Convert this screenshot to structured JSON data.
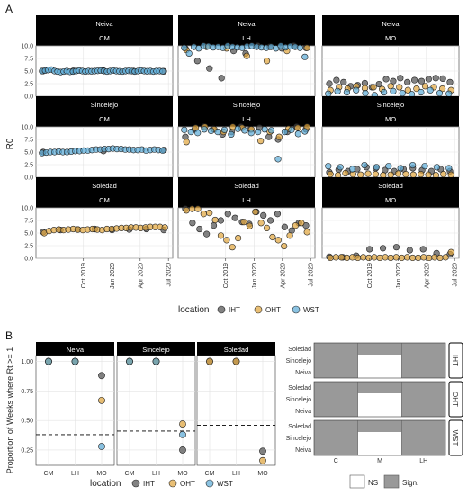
{
  "colors": {
    "IHT": "#4d4d4d",
    "OHT": "#e0a43a",
    "WST": "#5aa9d6",
    "sign": "#999999",
    "ns": "#ffffff"
  },
  "chart_data": [
    {
      "type": "scatter",
      "panel_label": "A",
      "ylabel": "R0",
      "ylim": [
        0,
        10
      ],
      "yticks": [
        "0.0",
        "2.5",
        "5.0",
        "7.5",
        "10.0"
      ],
      "xlim": [
        "2019-05-01",
        "2020-07-15"
      ],
      "xticks": [
        "Oct 2019",
        "Jan 2020",
        "Apr 2020",
        "Jul 2020"
      ],
      "rows": [
        "Neiva",
        "Sincelejo",
        "Soledad"
      ],
      "cols": [
        "CM",
        "LH",
        "MO"
      ],
      "legend": {
        "title": "location",
        "entries": [
          "IHT",
          "OHT",
          "WST"
        ]
      },
      "series_note": "weekly R0 by city (rows), model (cols) and location (colour); values are estimates read from the plot",
      "panels": {
        "Neiva|CM": {
          "IHT": [
            5.0,
            5.05,
            5.1,
            5.0,
            4.95
          ],
          "WST": [
            5.0,
            5.1,
            5.2,
            5.3,
            5.0,
            4.9,
            4.8,
            4.9,
            5.0,
            4.85,
            4.9,
            5.0,
            5.1,
            5.0,
            4.9,
            5.0,
            4.95,
            5.0,
            5.05,
            5.1,
            5.0,
            4.9,
            5.0,
            5.1,
            5.0,
            4.95,
            4.9,
            5.0,
            5.05,
            5.0,
            4.9,
            5.0,
            5.1,
            5.0,
            4.95,
            5.0,
            4.9,
            5.0,
            5.0,
            4.95
          ]
        },
        "Neiva|LH": {
          "IHT": [
            9.5,
            7.0,
            5.5,
            3.6,
            9.0,
            8.5,
            10,
            9.8,
            9.5,
            10,
            9.6
          ],
          "OHT": [
            9.2,
            9.8,
            9.5,
            8.0,
            7.0,
            9.0,
            9.6
          ],
          "WST": [
            9.6,
            8.5,
            9.8,
            9.5,
            10,
            9.9,
            9.7,
            9.8,
            9.6,
            10,
            9.8,
            9.7,
            9.6,
            9.9,
            10,
            9.8,
            9.7,
            9.6,
            9.8,
            9.5,
            10,
            9.7,
            9.9,
            9.8,
            9.6,
            7.8
          ]
        },
        "Neiva|MO": {
          "IHT": [
            2.5,
            3.2,
            2.8,
            2.0,
            2.2,
            2.6,
            1.8,
            2.4,
            3.4,
            3.0,
            3.6,
            2.8,
            3.2,
            3.0,
            3.4,
            3.6,
            3.5,
            2.8
          ],
          "OHT": [
            1.2,
            1.8,
            1.5,
            2.0,
            1.6,
            1.8,
            1.4,
            2.0,
            1.8,
            1.2,
            1.5,
            2.0,
            1.8,
            1.5,
            1.2
          ],
          "WST": [
            0.5,
            1.0,
            0.8,
            1.2,
            0.6,
            0.2,
            0.8,
            1.0,
            0.6,
            0.4,
            0.8,
            1.2,
            0.6,
            0.5
          ]
        },
        "Sincelejo|CM": {
          "IHT": [
            5.0,
            5.2,
            5.4
          ],
          "WST": [
            4.8,
            4.9,
            5.0,
            5.0,
            5.1,
            5.0,
            5.0,
            5.1,
            5.2,
            5.2,
            5.3,
            5.3,
            5.4,
            5.5,
            5.5,
            5.6,
            5.6,
            5.7,
            5.6,
            5.6,
            5.5,
            5.5,
            5.4,
            5.4,
            5.5,
            5.3,
            5.4,
            5.5,
            5.4,
            5.3
          ]
        },
        "Sincelejo|LH": {
          "IHT": [
            8.0,
            9.5,
            10,
            9.6,
            8.5,
            9.0,
            10,
            9.5,
            9.8,
            8.0,
            7.5,
            9.0,
            10,
            9.5
          ],
          "OHT": [
            7.0,
            9.8,
            10,
            9.5,
            9.0,
            10,
            9.8,
            9.5,
            7.2,
            9.0,
            8.0,
            9.6,
            9.8,
            10
          ],
          "WST": [
            9.4,
            9.0,
            8.8,
            9.5,
            9.2,
            9.0,
            9.4,
            8.5,
            9.6,
            9.3,
            8.8,
            9.0,
            9.5,
            9.3,
            3.6,
            9.0,
            9.4,
            8.6,
            9.1
          ]
        },
        "Sincelejo|MO": {
          "IHT": [
            1.0,
            1.5,
            1.2,
            1.6,
            2.0,
            1.8,
            1.4,
            1.2,
            1.6,
            1.8,
            1.4,
            1.2,
            1.6,
            1.2
          ],
          "OHT": [
            0.6,
            0.4,
            0.8,
            0.6,
            0.5,
            0.7,
            0.6,
            0.4,
            0.5,
            0.7,
            0.6,
            0.5,
            0.6,
            0.5,
            0.4,
            0.6,
            0.5
          ],
          "WST": [
            2.2,
            2.0,
            1.6,
            2.4,
            2.0,
            2.2,
            1.8,
            2.4,
            2.2,
            2.0,
            1.8
          ]
        },
        "Soledad|CM": {
          "IHT": [
            5.2,
            5.6,
            5.7,
            5.8,
            5.6,
            5.7,
            5.8,
            5.6
          ],
          "OHT": [
            5.0,
            5.4,
            5.6,
            5.7,
            5.6,
            5.7,
            5.8,
            5.7,
            5.6,
            5.7,
            5.8,
            5.7,
            5.6,
            5.8,
            5.8,
            5.9,
            6.0,
            6.0,
            6.1,
            6.1,
            6.0,
            6.1,
            6.2,
            6.2,
            6.2,
            6.1
          ]
        },
        "Soledad|LH": {
          "IHT": [
            9.8,
            7.0,
            5.8,
            4.8,
            6.5,
            7.5,
            8.8,
            8.0,
            7.2,
            6.8,
            9.2,
            8.5,
            7.5,
            8.8,
            6.2,
            5.5,
            7.0,
            6.5
          ],
          "OHT": [
            9.5,
            9.8,
            9.8,
            8.8,
            9.0,
            7.6,
            4.5,
            3.6,
            2.2,
            4.0,
            7.2,
            6.4,
            9.2,
            7.0,
            6.0,
            4.2,
            3.6,
            2.4,
            4.5,
            6.5,
            7.0,
            5.2
          ]
        },
        "Soledad|MO": {
          "IHT": [
            0.3,
            0.2,
            0.5,
            1.8,
            2.0,
            2.2,
            1.6,
            1.8,
            1.0,
            0.8
          ],
          "OHT": [
            0.1,
            0.2,
            0.2,
            0.1,
            0.2,
            0.1,
            0.2,
            0.1,
            0.2,
            0.1,
            0.2,
            0.1,
            0.2,
            0.1,
            0.2,
            0.1,
            0.1,
            0.2,
            0.1,
            0.2,
            0.1,
            0.2,
            1.2
          ]
        }
      }
    },
    {
      "type": "scatter",
      "panel_label": "B",
      "ylabel": "Proportion of Weeks where Rt >= 1",
      "ylim": [
        0.12,
        1.05
      ],
      "yticks": [
        "0.25",
        "0.50",
        "0.75",
        "1.00"
      ],
      "categories": [
        "CM",
        "LH",
        "MO"
      ],
      "facets": [
        "Neiva",
        "Sincelejo",
        "Soledad"
      ],
      "legend": {
        "title": "location",
        "entries": [
          "IHT",
          "OHT",
          "WST"
        ]
      },
      "points": {
        "Neiva": {
          "IHT": [
            1.0,
            1.0,
            0.88
          ],
          "OHT": [
            1.0,
            1.0,
            0.67
          ],
          "WST": [
            1.0,
            1.0,
            0.28
          ]
        },
        "Sincelejo": {
          "IHT": [
            1.0,
            1.0,
            0.25
          ],
          "OHT": [
            1.0,
            1.0,
            0.47
          ],
          "WST": [
            1.0,
            1.0,
            0.38
          ]
        },
        "Soledad": {
          "IHT": [
            1.0,
            1.0,
            0.24
          ],
          "OHT": [
            1.0,
            1.0,
            0.16
          ],
          "WST": []
        }
      },
      "reference_lines": {
        "Neiva": 0.38,
        "Sincelejo": 0.41,
        "Soledad": 0.46
      }
    },
    {
      "type": "heatmap",
      "rows": [
        "Soledad",
        "Sincelejo",
        "Neiva"
      ],
      "cols": [
        "C",
        "M",
        "LH"
      ],
      "facets": [
        "IHT",
        "OHT",
        "WST"
      ],
      "legend": {
        "entries": [
          "NS",
          "Sign."
        ]
      },
      "cells": {
        "IHT": [
          [
            "Sign.",
            "Sign.",
            "Sign."
          ],
          [
            "Sign.",
            "NS",
            "Sign."
          ],
          [
            "Sign.",
            "NS",
            "Sign."
          ]
        ],
        "OHT": [
          [
            "Sign.",
            "Sign.",
            "Sign."
          ],
          [
            "Sign.",
            "NS",
            "Sign."
          ],
          [
            "Sign.",
            "NS",
            "Sign."
          ]
        ],
        "WST": [
          [
            "Sign.",
            "Sign.",
            "Sign."
          ],
          [
            "Sign.",
            "NS",
            "Sign."
          ],
          [
            "Sign.",
            "NS",
            "Sign."
          ]
        ]
      }
    }
  ]
}
